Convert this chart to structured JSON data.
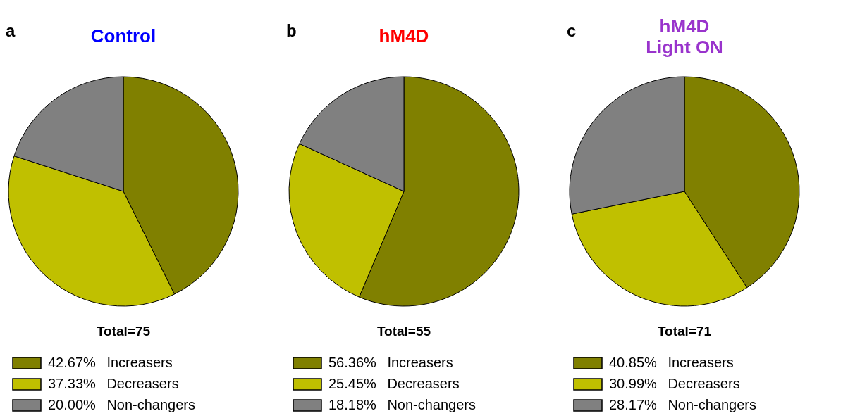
{
  "chart_data": [
    {
      "type": "pie",
      "title": "Control",
      "categories": [
        "Increasers",
        "Decreasers",
        "Non-changers"
      ],
      "values": [
        42.67,
        37.33,
        20.0
      ],
      "value_labels": [
        "42.67%",
        "37.33%",
        "20.00%"
      ],
      "colors": [
        "#808000",
        "#c0c000",
        "#808080"
      ],
      "legend": "bottom",
      "annotations": [
        "a",
        "Total=75"
      ]
    },
    {
      "type": "pie",
      "title": "hM4D",
      "categories": [
        "Increasers",
        "Decreasers",
        "Non-changers"
      ],
      "values": [
        56.36,
        25.45,
        18.18
      ],
      "value_labels": [
        "56.36%",
        "25.45%",
        "18.18%"
      ],
      "colors": [
        "#808000",
        "#c0c000",
        "#808080"
      ],
      "legend": "bottom",
      "annotations": [
        "b",
        "Total=55"
      ]
    },
    {
      "type": "pie",
      "title": "hM4D\nLight ON",
      "categories": [
        "Increasers",
        "Decreasers",
        "Non-changers"
      ],
      "values": [
        40.85,
        30.99,
        28.17
      ],
      "value_labels": [
        "40.85%",
        "30.99%",
        "28.17%"
      ],
      "colors": [
        "#808000",
        "#c0c000",
        "#808080"
      ],
      "legend": "bottom",
      "annotations": [
        "c",
        "Total=71"
      ]
    }
  ]
}
